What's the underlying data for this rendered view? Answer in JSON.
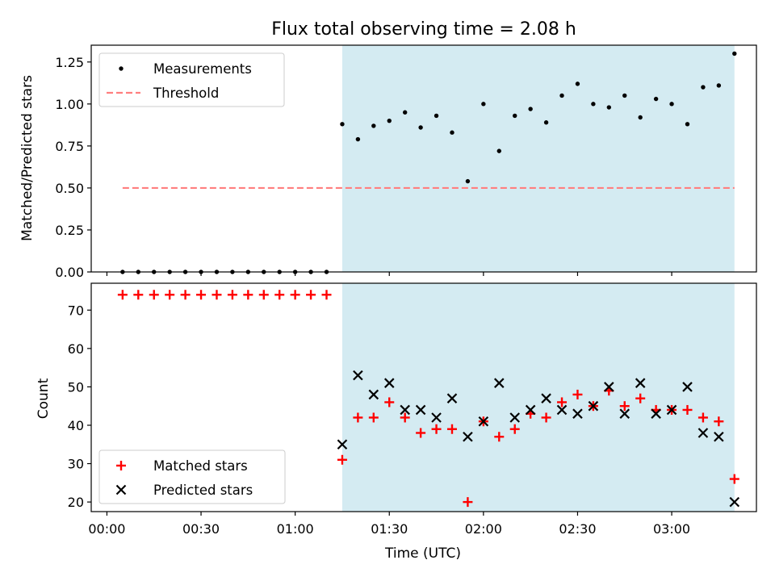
{
  "title": "Flux total observing time = 2.08 h",
  "colors": {
    "shade": "#add8e6",
    "threshold": "#ff7f7f",
    "matched": "#ff0000",
    "predicted": "#000000",
    "measurement": "#000000"
  },
  "chart_data": [
    {
      "type": "scatter",
      "ylabel": "Matched/Predicted stars",
      "ylim": [
        0,
        1.35
      ],
      "yticks": [
        0,
        0.25,
        0.5,
        0.75,
        1.0,
        1.25
      ],
      "ytick_labels": [
        "0.00",
        "0.25",
        "0.50",
        "0.75",
        "1.00",
        "1.25"
      ],
      "xlim": [
        "23:55",
        "03:27"
      ],
      "xticks": [
        "00:00",
        "00:30",
        "01:00",
        "01:30",
        "02:00",
        "02:30",
        "03:00"
      ],
      "shaded_region": [
        "01:15",
        "03:20"
      ],
      "legend_position": "upper left",
      "series": [
        {
          "name": "Measurements",
          "marker": "dot",
          "x": [
            "00:05",
            "00:10",
            "00:15",
            "00:20",
            "00:25",
            "00:30",
            "00:35",
            "00:40",
            "00:45",
            "00:50",
            "00:55",
            "01:00",
            "01:05",
            "01:10",
            "01:15",
            "01:20",
            "01:25",
            "01:30",
            "01:35",
            "01:40",
            "01:45",
            "01:50",
            "01:55",
            "02:00",
            "02:05",
            "02:10",
            "02:15",
            "02:20",
            "02:25",
            "02:30",
            "02:35",
            "02:40",
            "02:45",
            "02:50",
            "02:55",
            "03:00",
            "03:05",
            "03:10",
            "03:15",
            "03:20"
          ],
          "y": [
            0,
            0,
            0,
            0,
            0,
            0,
            0,
            0,
            0,
            0,
            0,
            0,
            0,
            0,
            0.88,
            0.79,
            0.87,
            0.9,
            0.95,
            0.86,
            0.93,
            0.83,
            0.54,
            1.0,
            0.72,
            0.93,
            0.97,
            0.89,
            1.05,
            1.12,
            1.0,
            0.98,
            1.05,
            0.92,
            1.03,
            1.0,
            0.88,
            1.1,
            1.11,
            1.3
          ]
        },
        {
          "name": "Threshold",
          "style": "dashed",
          "x": [
            "00:05",
            "03:20"
          ],
          "y": [
            0.5,
            0.5
          ]
        }
      ]
    },
    {
      "type": "scatter",
      "xlabel": "Time (UTC)",
      "ylabel": "Count",
      "ylim": [
        17.5,
        77
      ],
      "yticks": [
        20,
        30,
        40,
        50,
        60,
        70
      ],
      "ytick_labels": [
        "20",
        "30",
        "40",
        "50",
        "60",
        "70"
      ],
      "xlim": [
        "23:55",
        "03:27"
      ],
      "xticks": [
        "00:00",
        "00:30",
        "01:00",
        "01:30",
        "02:00",
        "02:30",
        "03:00"
      ],
      "xtick_labels": [
        "00:00",
        "00:30",
        "01:00",
        "01:30",
        "02:00",
        "02:30",
        "03:00"
      ],
      "shaded_region": [
        "01:15",
        "03:20"
      ],
      "legend_position": "lower left",
      "series": [
        {
          "name": "Matched stars",
          "marker": "plus",
          "x": [
            "00:05",
            "00:10",
            "00:15",
            "00:20",
            "00:25",
            "00:30",
            "00:35",
            "00:40",
            "00:45",
            "00:50",
            "00:55",
            "01:00",
            "01:05",
            "01:10",
            "01:15",
            "01:20",
            "01:25",
            "01:30",
            "01:35",
            "01:40",
            "01:45",
            "01:50",
            "01:55",
            "02:00",
            "02:05",
            "02:10",
            "02:15",
            "02:20",
            "02:25",
            "02:30",
            "02:35",
            "02:40",
            "02:45",
            "02:50",
            "02:55",
            "03:00",
            "03:05",
            "03:10",
            "03:15",
            "03:20"
          ],
          "y": [
            74,
            74,
            74,
            74,
            74,
            74,
            74,
            74,
            74,
            74,
            74,
            74,
            74,
            74,
            31,
            42,
            42,
            46,
            42,
            38,
            39,
            39,
            20,
            41,
            37,
            39,
            43,
            42,
            46,
            48,
            45,
            49,
            45,
            47,
            44,
            44,
            44,
            42,
            41,
            26
          ]
        },
        {
          "name": "Predicted stars",
          "marker": "x",
          "x": [
            "01:15",
            "01:20",
            "01:25",
            "01:30",
            "01:35",
            "01:40",
            "01:45",
            "01:50",
            "01:55",
            "02:00",
            "02:05",
            "02:10",
            "02:15",
            "02:20",
            "02:25",
            "02:30",
            "02:35",
            "02:40",
            "02:45",
            "02:50",
            "02:55",
            "03:00",
            "03:05",
            "03:10",
            "03:15",
            "03:20"
          ],
          "y": [
            35,
            53,
            48,
            51,
            44,
            44,
            42,
            47,
            37,
            41,
            51,
            42,
            44,
            47,
            44,
            43,
            45,
            50,
            43,
            51,
            43,
            44,
            50,
            38,
            37,
            20
          ]
        }
      ]
    }
  ]
}
